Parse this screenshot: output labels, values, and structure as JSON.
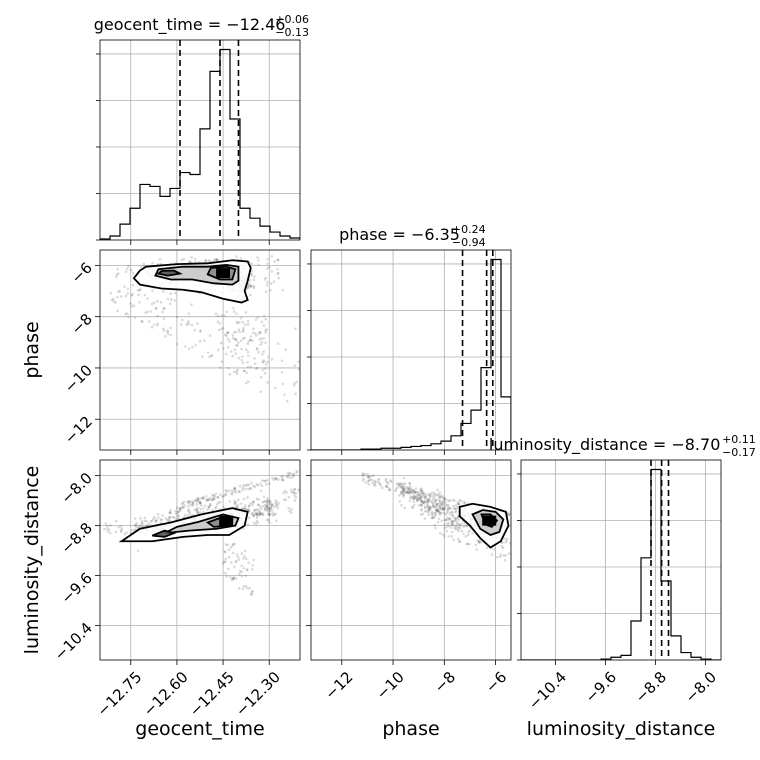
{
  "chart_data": {
    "type": "corner",
    "parameters": [
      "geocent_time",
      "phase",
      "luminosity_distance"
    ],
    "grid": true,
    "titles": [
      {
        "param": "geocent_time",
        "text": "geocent_time = −12.46",
        "plus": "+0.06",
        "minus": "−0.13"
      },
      {
        "param": "phase",
        "text": "phase = −6.35",
        "plus": "+0.24",
        "minus": "−0.94"
      },
      {
        "param": "luminosity_distance",
        "text": "luminosity_distance = −8.70",
        "plus": "+0.11",
        "minus": "−0.17"
      }
    ],
    "axes": {
      "geocent_time": {
        "range": [
          -12.85,
          -12.2
        ],
        "ticks": [
          -12.75,
          -12.6,
          -12.45,
          -12.3
        ],
        "tick_labels": [
          "−12.75",
          "−12.60",
          "−12.45",
          "−12.30"
        ]
      },
      "phase": {
        "range": [
          -13.2,
          -5.4
        ],
        "ticks": [
          -12,
          -10,
          -8,
          -6
        ],
        "tick_labels": [
          "−12",
          "−10",
          "−8",
          "−6"
        ]
      },
      "luminosity_distance": {
        "range": [
          -10.95,
          -7.75
        ],
        "ticks": [
          -10.4,
          -9.6,
          -8.8,
          -8.0
        ],
        "tick_labels": [
          "−10.4",
          "−9.6",
          "−8.8",
          "−8.0"
        ]
      }
    },
    "quantiles": {
      "geocent_time": [
        -12.59,
        -12.46,
        -12.4
      ],
      "phase": [
        -7.29,
        -6.35,
        -6.11
      ],
      "luminosity_distance": [
        -8.87,
        -8.7,
        -8.59
      ]
    },
    "histograms": {
      "geocent_time": {
        "edges": [
          -12.85,
          -12.8175,
          -12.785,
          -12.7525,
          -12.72,
          -12.6875,
          -12.655,
          -12.6225,
          -12.59,
          -12.5575,
          -12.525,
          -12.4925,
          -12.46,
          -12.4275,
          -12.395,
          -12.3625,
          -12.33,
          -12.2975,
          -12.265,
          -12.2325,
          -12.2
        ],
        "counts": [
          0.5,
          2,
          8,
          16,
          28,
          27,
          22,
          26,
          34,
          33,
          56,
          85,
          96,
          61,
          16,
          11,
          7,
          4,
          2,
          1
        ]
      },
      "phase": {
        "edges": [
          -13.2,
          -12.81,
          -12.42,
          -12.03,
          -11.64,
          -11.25,
          -10.86,
          -10.47,
          -10.08,
          -9.69,
          -9.3,
          -8.91,
          -8.52,
          -8.13,
          -7.74,
          -7.35,
          -6.96,
          -6.57,
          -6.18,
          -5.79,
          -5.4
        ],
        "counts": [
          0,
          0,
          0,
          0,
          0,
          1,
          1,
          2,
          2,
          3,
          4,
          5,
          7,
          10,
          16,
          30,
          45,
          93,
          215,
          60
        ]
      },
      "luminosity_distance": {
        "edges": [
          -10.95,
          -10.79,
          -10.63,
          -10.47,
          -10.31,
          -10.15,
          -9.99,
          -9.83,
          -9.67,
          -9.51,
          -9.35,
          -9.19,
          -9.03,
          -8.87,
          -8.71,
          -8.55,
          -8.39,
          -8.23,
          -8.07,
          -7.91,
          -7.75
        ],
        "counts": [
          0,
          0,
          0,
          0,
          0,
          0,
          0,
          0,
          1,
          3,
          5,
          42,
          110,
          205,
          85,
          26,
          8,
          3,
          1,
          0
        ]
      }
    },
    "pairs": [
      {
        "x": "geocent_time",
        "y": "phase",
        "dense_points": [
          [
            -12.68,
            -6.3
          ],
          [
            -12.62,
            -6.3
          ],
          [
            -12.55,
            -6.15
          ],
          [
            -12.47,
            -6.2
          ],
          [
            -12.44,
            -6.3
          ],
          [
            -12.4,
            -6.5
          ],
          [
            -12.38,
            -6.9
          ]
        ],
        "scatter_bands": [
          {
            "x": [
              -12.82,
              -12.2
            ],
            "y_start": [
              -6.8,
              -8.4
            ],
            "y_end": [
              -7.6,
              -11.8
            ],
            "n": 170
          },
          {
            "x": [
              -12.8,
              -12.25
            ],
            "y_start": [
              -6.0,
              -5.6
            ],
            "y_end": [
              -7.2,
              -7.0
            ],
            "n": 140
          },
          {
            "x": [
              -12.45,
              -12.3
            ],
            "y_start": [
              -7.5,
              -8.0
            ],
            "y_end": [
              -9.5,
              -10.5
            ],
            "n": 60
          }
        ],
        "contours": [
          [
            [
              -12.7,
              -6.05
            ],
            [
              -12.6,
              -5.95
            ],
            [
              -12.5,
              -5.92
            ],
            [
              -12.42,
              -5.8
            ],
            [
              -12.37,
              -5.85
            ],
            [
              -12.36,
              -6.1
            ],
            [
              -12.37,
              -6.6
            ],
            [
              -12.38,
              -7.0
            ],
            [
              -12.37,
              -7.35
            ],
            [
              -12.39,
              -7.45
            ],
            [
              -12.45,
              -7.3
            ],
            [
              -12.52,
              -7.05
            ],
            [
              -12.58,
              -6.95
            ],
            [
              -12.65,
              -6.9
            ],
            [
              -12.72,
              -6.75
            ],
            [
              -12.74,
              -6.5
            ],
            [
              -12.72,
              -6.2
            ]
          ],
          [
            [
              -12.66,
              -6.15
            ],
            [
              -12.58,
              -6.05
            ],
            [
              -12.5,
              -6.05
            ],
            [
              -12.44,
              -5.98
            ],
            [
              -12.4,
              -6.05
            ],
            [
              -12.4,
              -6.6
            ],
            [
              -12.42,
              -6.75
            ],
            [
              -12.48,
              -6.7
            ],
            [
              -12.55,
              -6.55
            ],
            [
              -12.62,
              -6.55
            ],
            [
              -12.67,
              -6.4
            ]
          ],
          [
            [
              -12.49,
              -6.1
            ],
            [
              -12.44,
              -6.05
            ],
            [
              -12.41,
              -6.15
            ],
            [
              -12.42,
              -6.55
            ],
            [
              -12.46,
              -6.55
            ],
            [
              -12.5,
              -6.35
            ]
          ],
          [
            [
              -12.65,
              -6.22
            ],
            [
              -12.61,
              -6.2
            ],
            [
              -12.59,
              -6.32
            ],
            [
              -12.63,
              -6.4
            ],
            [
              -12.66,
              -6.32
            ]
          ]
        ],
        "peak": [
          -12.45,
          -6.3
        ]
      },
      {
        "x": "geocent_time",
        "y": "luminosity_distance",
        "dense_points": [
          [
            -12.72,
            -8.85
          ],
          [
            -12.65,
            -8.78
          ],
          [
            -12.55,
            -8.7
          ],
          [
            -12.48,
            -8.68
          ],
          [
            -12.44,
            -8.7
          ],
          [
            -12.4,
            -8.62
          ],
          [
            -12.34,
            -8.55
          ],
          [
            -12.28,
            -8.5
          ]
        ],
        "scatter_bands": [
          {
            "x": [
              -12.84,
              -12.2
            ],
            "y_start": [
              -8.75,
              -8.2
            ],
            "y_end": [
              -9.0,
              -8.6
            ],
            "n": 170
          },
          {
            "x": [
              -12.6,
              -12.2
            ],
            "y_start": [
              -8.45,
              -7.9
            ],
            "y_end": [
              -8.55,
              -8.0
            ],
            "n": 120
          },
          {
            "x": [
              -12.45,
              -12.35
            ],
            "y_start": [
              -9.0,
              -9.2
            ],
            "y_end": [
              -9.6,
              -10.0
            ],
            "n": 60
          }
        ],
        "contours": [
          [
            [
              -12.78,
              -9.05
            ],
            [
              -12.72,
              -8.85
            ],
            [
              -12.62,
              -8.75
            ],
            [
              -12.52,
              -8.62
            ],
            [
              -12.42,
              -8.52
            ],
            [
              -12.37,
              -8.58
            ],
            [
              -12.38,
              -8.8
            ],
            [
              -12.43,
              -8.95
            ],
            [
              -12.5,
              -8.95
            ],
            [
              -12.58,
              -8.98
            ],
            [
              -12.68,
              -9.05
            ]
          ],
          [
            [
              -12.64,
              -8.92
            ],
            [
              -12.6,
              -8.82
            ],
            [
              -12.53,
              -8.74
            ],
            [
              -12.45,
              -8.62
            ],
            [
              -12.4,
              -8.68
            ],
            [
              -12.41,
              -8.8
            ],
            [
              -12.47,
              -8.85
            ],
            [
              -12.56,
              -8.88
            ]
          ],
          [
            [
              -12.5,
              -8.75
            ],
            [
              -12.45,
              -8.66
            ],
            [
              -12.42,
              -8.7
            ],
            [
              -12.43,
              -8.8
            ],
            [
              -12.48,
              -8.82
            ]
          ],
          [
            [
              -12.68,
              -8.96
            ],
            [
              -12.64,
              -8.88
            ],
            [
              -12.61,
              -8.92
            ],
            [
              -12.64,
              -8.98
            ]
          ]
        ],
        "peak": [
          -12.44,
          -8.72
        ]
      },
      {
        "x": "phase",
        "y": "luminosity_distance",
        "dense_points": [
          [
            -9.8,
            -8.2
          ],
          [
            -9.0,
            -8.35
          ],
          [
            -8.3,
            -8.5
          ],
          [
            -7.6,
            -8.62
          ],
          [
            -7.0,
            -8.7
          ],
          [
            -6.4,
            -8.72
          ],
          [
            -5.9,
            -8.75
          ]
        ],
        "scatter_bands": [
          {
            "x": [
              -11.2,
              -5.4
            ],
            "y_start": [
              -7.95,
              -8.6
            ],
            "y_end": [
              -8.1,
              -8.9
            ],
            "n": 170
          },
          {
            "x": [
              -8.5,
              -5.4
            ],
            "y_start": [
              -8.5,
              -8.8
            ],
            "y_end": [
              -8.9,
              -9.4
            ],
            "n": 110
          }
        ],
        "contours": [
          [
            [
              -7.4,
              -8.5
            ],
            [
              -6.9,
              -8.45
            ],
            [
              -6.2,
              -8.5
            ],
            [
              -5.6,
              -8.58
            ],
            [
              -5.5,
              -8.8
            ],
            [
              -5.8,
              -9.05
            ],
            [
              -6.2,
              -9.15
            ],
            [
              -6.6,
              -9.0
            ],
            [
              -7.0,
              -8.8
            ],
            [
              -7.4,
              -8.65
            ]
          ],
          [
            [
              -6.9,
              -8.62
            ],
            [
              -6.5,
              -8.55
            ],
            [
              -6.0,
              -8.58
            ],
            [
              -5.7,
              -8.7
            ],
            [
              -5.85,
              -8.9
            ],
            [
              -6.2,
              -8.95
            ],
            [
              -6.6,
              -8.85
            ]
          ],
          [
            [
              -6.55,
              -8.62
            ],
            [
              -6.2,
              -8.62
            ],
            [
              -5.95,
              -8.72
            ],
            [
              -6.15,
              -8.82
            ],
            [
              -6.4,
              -8.78
            ]
          ]
        ],
        "peak": [
          -6.25,
          -8.72
        ]
      }
    ]
  }
}
